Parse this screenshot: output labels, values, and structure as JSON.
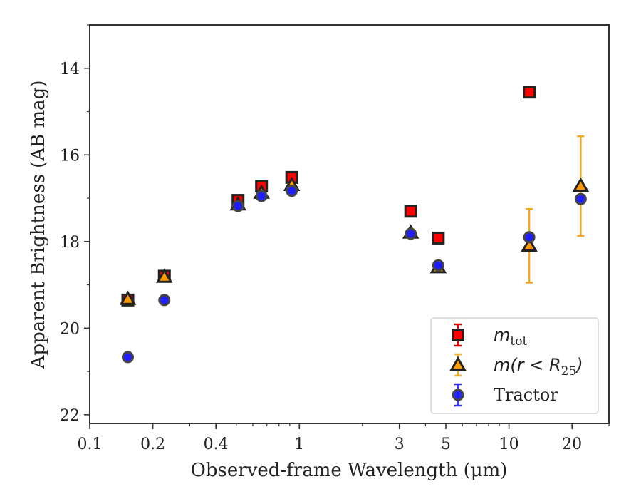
{
  "chart_data": {
    "type": "scatter",
    "xlabel": "Observed-frame Wavelength (μm)",
    "ylabel": "Apparent Brightness (AB mag)",
    "xscale": "log",
    "xlim": [
      0.1,
      30
    ],
    "ylim": [
      22.2,
      13
    ],
    "y_inverted": true,
    "x_ticks": [
      0.1,
      0.2,
      0.4,
      1,
      3,
      5,
      10,
      20
    ],
    "x_tick_labels": [
      "0.1",
      "0.2",
      "0.4",
      "1",
      "3",
      "5",
      "10",
      "20"
    ],
    "y_ticks": [
      14,
      16,
      18,
      20,
      22
    ],
    "y_tick_labels": [
      "14",
      "16",
      "18",
      "20",
      "22"
    ],
    "grid": false,
    "legend_position": "lower-right",
    "series": [
      {
        "label_main": "m",
        "label_sub": "tot",
        "label_suffix": "",
        "marker": "square",
        "color": "#ff0000",
        "edge_color": "#222222",
        "error_color": "#e00000",
        "points": [
          {
            "x": 0.152,
            "y": 19.35,
            "err": 0.04
          },
          {
            "x": 0.227,
            "y": 18.8,
            "err": 0.04
          },
          {
            "x": 0.51,
            "y": 17.05,
            "err": 0.04
          },
          {
            "x": 0.66,
            "y": 16.72,
            "err": 0.04
          },
          {
            "x": 0.92,
            "y": 16.52,
            "err": 0.04
          },
          {
            "x": 3.4,
            "y": 17.3,
            "err": 0.04
          },
          {
            "x": 4.6,
            "y": 17.92,
            "err": 0.04
          },
          {
            "x": 12.5,
            "y": 14.55,
            "err": 0.04
          }
        ]
      },
      {
        "label_main": "m(r < R",
        "label_sub": "25",
        "label_suffix": ")",
        "marker": "triangle",
        "color": "#ff9900",
        "edge_color": "#222222",
        "error_color": "#f5a623",
        "points": [
          {
            "x": 0.152,
            "y": 19.33,
            "err": 0.04
          },
          {
            "x": 0.227,
            "y": 18.82,
            "err": 0.04
          },
          {
            "x": 0.51,
            "y": 17.15,
            "err": 0.04
          },
          {
            "x": 0.66,
            "y": 16.88,
            "err": 0.04
          },
          {
            "x": 0.92,
            "y": 16.7,
            "err": 0.04
          },
          {
            "x": 3.4,
            "y": 17.8,
            "err": 0.04
          },
          {
            "x": 4.6,
            "y": 18.6,
            "err": 0.04
          },
          {
            "x": 12.5,
            "y": 18.1,
            "err": 0.85
          },
          {
            "x": 22.0,
            "y": 16.72,
            "err": 1.15
          }
        ]
      },
      {
        "label_main": "Tractor",
        "label_sub": "",
        "label_suffix": "",
        "marker": "circle",
        "color": "#1a1aff",
        "edge_color": "#444444",
        "error_color": "#3333ff",
        "points": [
          {
            "x": 0.152,
            "y": 20.67,
            "err": 0.04
          },
          {
            "x": 0.227,
            "y": 19.35,
            "err": 0.04
          },
          {
            "x": 0.51,
            "y": 17.18,
            "err": 0.04
          },
          {
            "x": 0.66,
            "y": 16.95,
            "err": 0.04
          },
          {
            "x": 0.92,
            "y": 16.83,
            "err": 0.04
          },
          {
            "x": 3.4,
            "y": 17.82,
            "err": 0.04
          },
          {
            "x": 4.6,
            "y": 18.55,
            "err": 0.04
          },
          {
            "x": 12.5,
            "y": 17.9,
            "err": 0.04
          },
          {
            "x": 22.0,
            "y": 17.02,
            "err": 0.04
          }
        ]
      }
    ]
  }
}
